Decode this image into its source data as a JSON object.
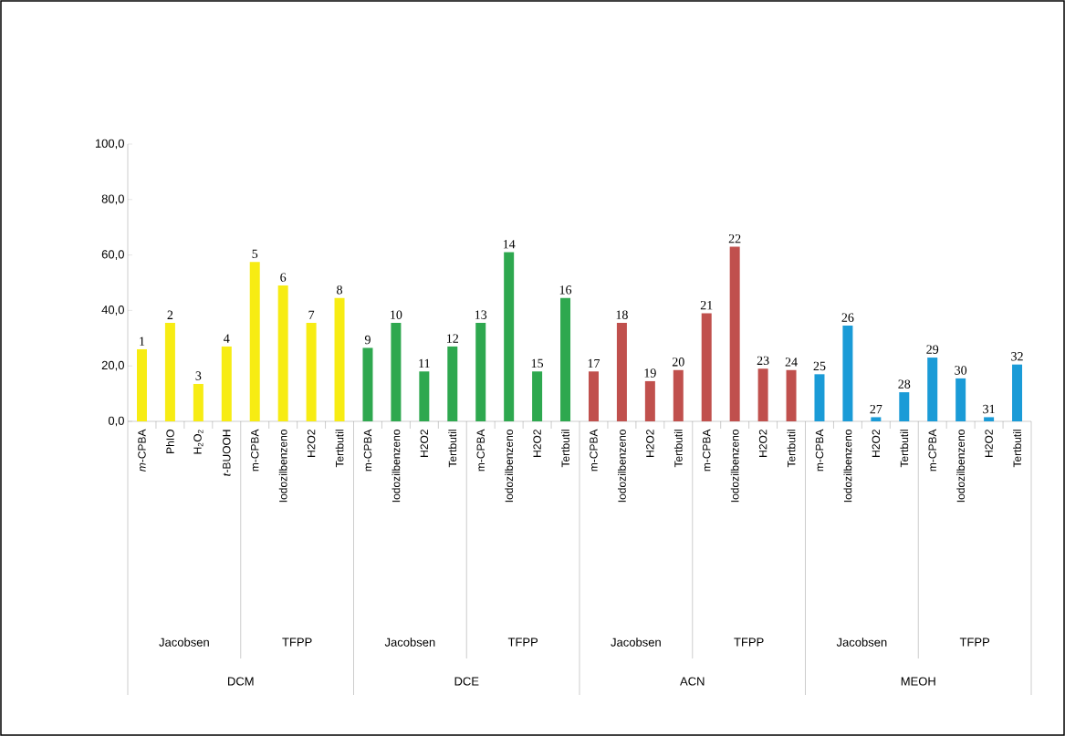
{
  "chart_data": {
    "type": "bar",
    "categories": [
      "*m*-CPBA",
      "PhIO",
      "H$_{2}$O$_{2}$",
      "*t*-BUOOH",
      "m-CPBA",
      "Iodozilbenzeno",
      "H2O2",
      "Tertbutil",
      "m-CPBA",
      "Iodozilbenzeno",
      "H2O2",
      "Tertbutil",
      "m-CPBA",
      "Iodozilbenzeno",
      "H2O2",
      "Tertbutil",
      "m-CPBA",
      "Iodozilbenzeno",
      "H2O2",
      "Tertbutil",
      "m-CPBA",
      "Iodozilbenzeno",
      "H2O2",
      "Tertbutil",
      "m-CPBA",
      "Iodozilbenzeno",
      "H2O2",
      "Tertbutil",
      "m-CPBA",
      "Iodozilbenzeno",
      "H2O2",
      "Tertbutil"
    ],
    "values": [
      26,
      35.5,
      13.5,
      27,
      57.5,
      49,
      35.5,
      44.5,
      26.5,
      35.5,
      18,
      27,
      35.5,
      61,
      18,
      44.5,
      18,
      35.5,
      14.5,
      18.5,
      39,
      63,
      19,
      18.5,
      17,
      34.5,
      1.5,
      10.5,
      23,
      15.5,
      1.5,
      20.5
    ],
    "colors": [
      "#f7ec13",
      "#f7ec13",
      "#f7ec13",
      "#f7ec13",
      "#f7ec13",
      "#f7ec13",
      "#f7ec13",
      "#f7ec13",
      "#2ea84f",
      "#2ea84f",
      "#2ea84f",
      "#2ea84f",
      "#2ea84f",
      "#2ea84f",
      "#2ea84f",
      "#2ea84f",
      "#c0504d",
      "#c0504d",
      "#c0504d",
      "#c0504d",
      "#c0504d",
      "#c0504d",
      "#c0504d",
      "#c0504d",
      "#1a9bd7",
      "#1a9bd7",
      "#1a9bd7",
      "#1a9bd7",
      "#1a9bd7",
      "#1a9bd7",
      "#1a9bd7",
      "#1a9bd7"
    ],
    "ylim": [
      0,
      100
    ],
    "yticks": [
      {
        "value": 0,
        "label": "0,0"
      },
      {
        "value": 20,
        "label": "20,0"
      },
      {
        "value": 40,
        "label": "40,0"
      },
      {
        "value": 60,
        "label": "60,0"
      },
      {
        "value": 80,
        "label": "80,0"
      },
      {
        "value": 100,
        "label": "100,0"
      }
    ],
    "annotations": [
      {
        "text": "1",
        "y": 26
      },
      {
        "text": "2",
        "y": 35.5
      },
      {
        "text": "3",
        "y": 13.5
      },
      {
        "text": "4",
        "y": 27
      },
      {
        "text": "5",
        "y": 57.5
      },
      {
        "text": "6",
        "y": 49
      },
      {
        "text": "7",
        "y": 35.5
      },
      {
        "text": "8",
        "y": 44.5
      },
      {
        "text": "9",
        "y": 26.5
      },
      {
        "text": "10",
        "y": 35.5
      },
      {
        "text": "11",
        "y": 18
      },
      {
        "text": "12",
        "y": 27
      },
      {
        "text": "13",
        "y": 35.5
      },
      {
        "text": "14",
        "y": 61
      },
      {
        "text": "15",
        "y": 18
      },
      {
        "text": "16",
        "y": 44.5
      },
      {
        "text": "17",
        "y": 18
      },
      {
        "text": "18",
        "y": 35.5
      },
      {
        "text": "19",
        "y": 14.5
      },
      {
        "text": "20",
        "y": 18.5
      },
      {
        "text": "21",
        "y": 39
      },
      {
        "text": "22",
        "y": 63
      },
      {
        "text": "23",
        "y": 19
      },
      {
        "text": "24",
        "y": 18.5
      },
      {
        "text": "25",
        "y": 17
      },
      {
        "text": "26",
        "y": 34.5
      },
      {
        "text": "27",
        "y": 1.5
      },
      {
        "text": "28",
        "y": 10.5
      },
      {
        "text": "29",
        "y": 23
      },
      {
        "text": "30",
        "y": 15.5
      },
      {
        "text": "31",
        "y": 1.5
      },
      {
        "text": "32",
        "y": 20.5
      },
      "Jacobsen",
      "TFPP",
      "Jacobsen",
      "TFPP",
      "Jacobsen",
      "TFPP",
      "Jacobsen",
      "TFPP",
      "DCM",
      "DCE",
      "ACN",
      "MEOH"
    ]
  }
}
